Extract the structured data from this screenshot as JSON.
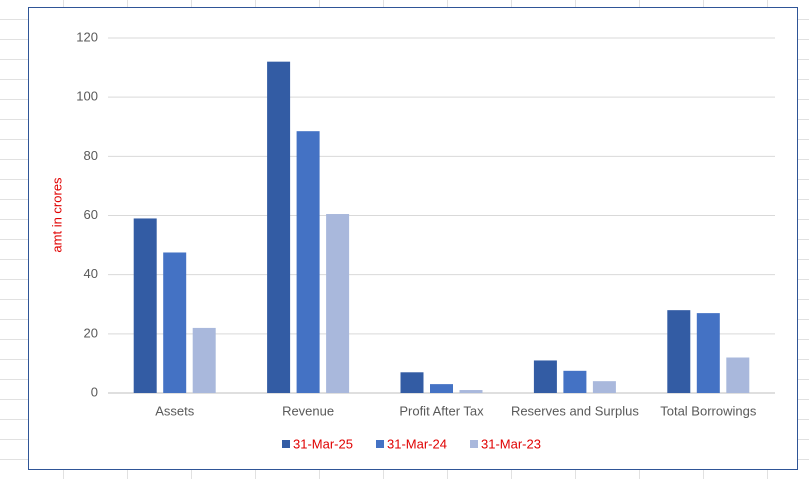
{
  "chart_data": {
    "type": "bar",
    "y_label": "amt in crores",
    "categories": [
      "Assets",
      "Revenue",
      "Profit After Tax",
      "Reserves and Surplus",
      "Total Borrowings"
    ],
    "series": [
      {
        "name": "31-Mar-25",
        "color": "#335ca4",
        "values": [
          59,
          112,
          7,
          11,
          28
        ]
      },
      {
        "name": "31-Mar-24",
        "color": "#4472c4",
        "values": [
          47.5,
          88.5,
          3,
          7.5,
          27
        ]
      },
      {
        "name": "31-Mar-23",
        "color": "#a9b8dc",
        "values": [
          22,
          60.5,
          1,
          4,
          12
        ]
      }
    ],
    "ylim": [
      0,
      120
    ],
    "yticks": [
      0,
      20,
      40,
      60,
      80,
      100,
      120
    ],
    "grid": true,
    "legend": "bottom"
  }
}
